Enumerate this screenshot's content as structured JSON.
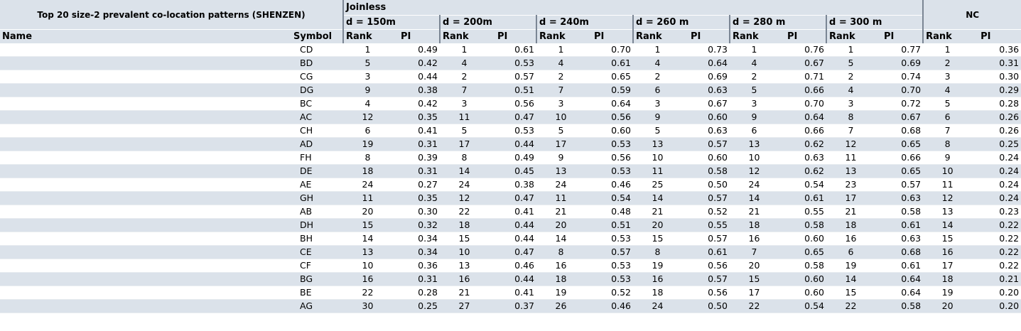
{
  "title": "Top 20 size-2 prevalent co-location patterns (SHENZEN)",
  "joinless_label": "Joinless",
  "nc_label": "NC",
  "distances": [
    "d = 150m",
    "d = 200m",
    "d = 240m",
    "d = 260 m",
    "d = 280 m",
    "d = 300 m"
  ],
  "col_name": "Name",
  "col_symbol": "Symbol",
  "col_rank": "Rank",
  "col_pi": "PI",
  "rows": [
    {
      "name": "",
      "symbol": "CD",
      "vals": [
        "1",
        "0.49",
        "1",
        "0.61",
        "1",
        "0.70",
        "1",
        "0.73",
        "1",
        "0.76",
        "1",
        "0.77",
        "1",
        "0.36"
      ]
    },
    {
      "name": "",
      "symbol": "BD",
      "vals": [
        "5",
        "0.42",
        "4",
        "0.53",
        "4",
        "0.61",
        "4",
        "0.64",
        "4",
        "0.67",
        "5",
        "0.69",
        "2",
        "0.31"
      ]
    },
    {
      "name": "",
      "symbol": "CG",
      "vals": [
        "3",
        "0.44",
        "2",
        "0.57",
        "2",
        "0.65",
        "2",
        "0.69",
        "2",
        "0.71",
        "2",
        "0.74",
        "3",
        "0.30"
      ]
    },
    {
      "name": "",
      "symbol": "DG",
      "vals": [
        "9",
        "0.38",
        "7",
        "0.51",
        "7",
        "0.59",
        "6",
        "0.63",
        "5",
        "0.66",
        "4",
        "0.70",
        "4",
        "0.29"
      ]
    },
    {
      "name": "",
      "symbol": "BC",
      "vals": [
        "4",
        "0.42",
        "3",
        "0.56",
        "3",
        "0.64",
        "3",
        "0.67",
        "3",
        "0.70",
        "3",
        "0.72",
        "5",
        "0.28"
      ]
    },
    {
      "name": "",
      "symbol": "AC",
      "vals": [
        "12",
        "0.35",
        "11",
        "0.47",
        "10",
        "0.56",
        "9",
        "0.60",
        "9",
        "0.64",
        "8",
        "0.67",
        "6",
        "0.26"
      ]
    },
    {
      "name": "",
      "symbol": "CH",
      "vals": [
        "6",
        "0.41",
        "5",
        "0.53",
        "5",
        "0.60",
        "5",
        "0.63",
        "6",
        "0.66",
        "7",
        "0.68",
        "7",
        "0.26"
      ]
    },
    {
      "name": "",
      "symbol": "AD",
      "vals": [
        "19",
        "0.31",
        "17",
        "0.44",
        "17",
        "0.53",
        "13",
        "0.57",
        "13",
        "0.62",
        "12",
        "0.65",
        "8",
        "0.25"
      ]
    },
    {
      "name": "",
      "symbol": "FH",
      "vals": [
        "8",
        "0.39",
        "8",
        "0.49",
        "9",
        "0.56",
        "10",
        "0.60",
        "10",
        "0.63",
        "11",
        "0.66",
        "9",
        "0.24"
      ]
    },
    {
      "name": "",
      "symbol": "DE",
      "vals": [
        "18",
        "0.31",
        "14",
        "0.45",
        "13",
        "0.53",
        "11",
        "0.58",
        "12",
        "0.62",
        "13",
        "0.65",
        "10",
        "0.24"
      ]
    },
    {
      "name": "",
      "symbol": "AE",
      "vals": [
        "24",
        "0.27",
        "24",
        "0.38",
        "24",
        "0.46",
        "25",
        "0.50",
        "24",
        "0.54",
        "23",
        "0.57",
        "11",
        "0.24"
      ]
    },
    {
      "name": "",
      "symbol": "GH",
      "vals": [
        "11",
        "0.35",
        "12",
        "0.47",
        "11",
        "0.54",
        "14",
        "0.57",
        "14",
        "0.61",
        "17",
        "0.63",
        "12",
        "0.24"
      ]
    },
    {
      "name": "",
      "symbol": "AB",
      "vals": [
        "20",
        "0.30",
        "22",
        "0.41",
        "21",
        "0.48",
        "21",
        "0.52",
        "21",
        "0.55",
        "21",
        "0.58",
        "13",
        "0.23"
      ]
    },
    {
      "name": "",
      "symbol": "DH",
      "vals": [
        "15",
        "0.32",
        "18",
        "0.44",
        "20",
        "0.51",
        "20",
        "0.55",
        "18",
        "0.58",
        "18",
        "0.61",
        "14",
        "0.22"
      ]
    },
    {
      "name": "",
      "symbol": "BH",
      "vals": [
        "14",
        "0.34",
        "15",
        "0.44",
        "14",
        "0.53",
        "15",
        "0.57",
        "16",
        "0.60",
        "16",
        "0.63",
        "15",
        "0.22"
      ]
    },
    {
      "name": "",
      "symbol": "CE",
      "vals": [
        "13",
        "0.34",
        "10",
        "0.47",
        "8",
        "0.57",
        "8",
        "0.61",
        "7",
        "0.65",
        "6",
        "0.68",
        "16",
        "0.22"
      ]
    },
    {
      "name": "",
      "symbol": "CF",
      "vals": [
        "10",
        "0.36",
        "13",
        "0.46",
        "16",
        "0.53",
        "19",
        "0.56",
        "20",
        "0.58",
        "19",
        "0.61",
        "17",
        "0.22"
      ]
    },
    {
      "name": "",
      "symbol": "BG",
      "vals": [
        "16",
        "0.31",
        "16",
        "0.44",
        "18",
        "0.53",
        "16",
        "0.57",
        "15",
        "0.60",
        "14",
        "0.64",
        "18",
        "0.21"
      ]
    },
    {
      "name": "",
      "symbol": "BE",
      "vals": [
        "22",
        "0.28",
        "21",
        "0.41",
        "19",
        "0.52",
        "18",
        "0.56",
        "17",
        "0.60",
        "15",
        "0.64",
        "19",
        "0.20"
      ]
    },
    {
      "name": "",
      "symbol": "AG",
      "vals": [
        "30",
        "0.25",
        "27",
        "0.37",
        "26",
        "0.46",
        "24",
        "0.50",
        "22",
        "0.54",
        "22",
        "0.58",
        "20",
        "0.20"
      ]
    }
  ]
}
